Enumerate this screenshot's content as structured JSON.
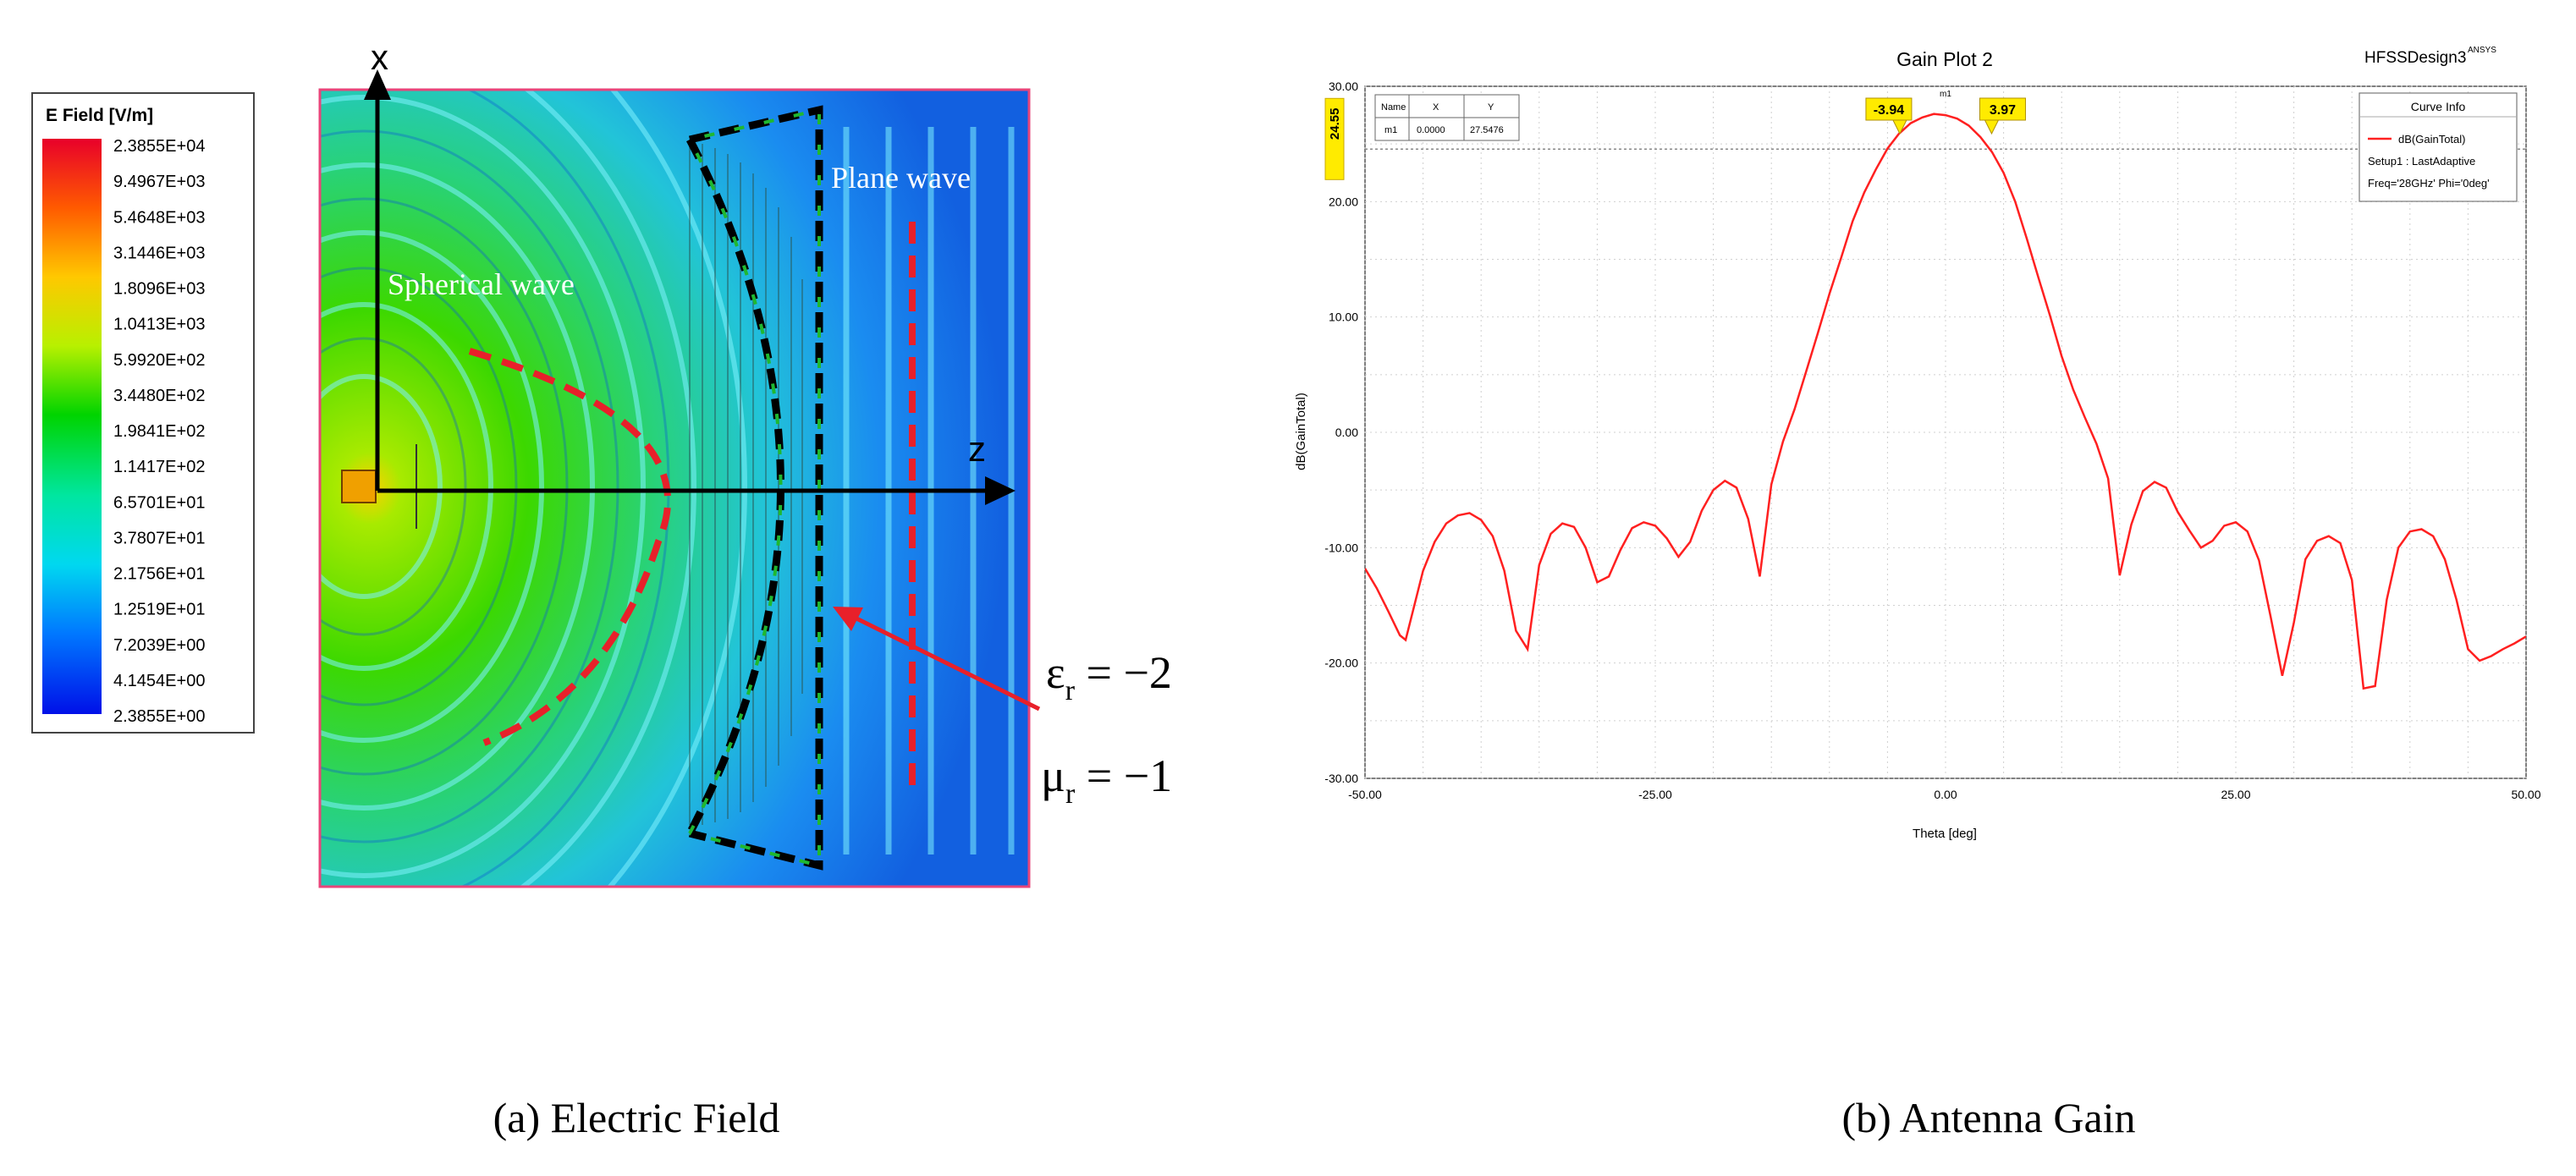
{
  "colors": {
    "curve": "#ff2020",
    "axis": "#000000",
    "marker_fill": "#ffeb00",
    "dashed_red": "#e8202a",
    "dashed_black": "#000000",
    "frame_pink": "#e8457a",
    "grid": "#c8c8c8"
  },
  "panel_a": {
    "legend": {
      "title": "E Field [V/m]",
      "values": [
        "2.3855E+04",
        "9.4967E+03",
        "5.4648E+03",
        "3.1446E+03",
        "1.8096E+03",
        "1.0413E+03",
        "5.9920E+02",
        "3.4480E+02",
        "1.9841E+02",
        "1.1417E+02",
        "6.5701E+01",
        "3.7807E+01",
        "2.1756E+01",
        "1.2519E+01",
        "7.2039E+00",
        "4.1454E+00",
        "2.3855E+00"
      ]
    },
    "axis_x_label": "x",
    "axis_z_label": "z",
    "label_spherical": "Spherical wave",
    "label_plane": "Plane wave",
    "eps_label": "ε",
    "eps_sub": "r",
    "eps_value": " = −2",
    "mu_label": "μ",
    "mu_sub": "r",
    "mu_value": " = −1",
    "caption": "(a)  Electric Field"
  },
  "panel_b": {
    "caption": "(b)  Antenna Gain",
    "design_name": "HFSSDesign3",
    "design_id": "ANSYS",
    "legend": {
      "title": "Curve Info",
      "series": "dB(GainTotal)",
      "setup": "Setup1 : LastAdaptive",
      "params": "Freq='28GHz' Phi='0deg'"
    },
    "marker_table": {
      "headers": [
        "Name",
        "X",
        "Y"
      ],
      "row": [
        "m1",
        "0.0000",
        "27.5476"
      ]
    },
    "marker_m1": "m1",
    "marker_left": "-3.94",
    "marker_right": "3.97",
    "ref_line_value": "24.55"
  },
  "chart_data": {
    "type": "line",
    "title": "Gain Plot 2",
    "xlabel": "Theta [deg]",
    "ylabel": "dB(GainTotal)",
    "xlim": [
      -50,
      50
    ],
    "ylim": [
      -30,
      30
    ],
    "x_ticks": [
      -50,
      -25,
      0,
      25,
      50
    ],
    "x_tick_labels": [
      "-50.00",
      "-25.00",
      "0.00",
      "25.00",
      "50.00"
    ],
    "y_ticks": [
      -30,
      -20,
      -10,
      0,
      10,
      20,
      30
    ],
    "y_tick_labels": [
      "-30.00",
      "-20.00",
      "-10.00",
      "0.00",
      "10.00",
      "20.00",
      "30.00"
    ],
    "grid": true,
    "reference_line_y": 24.55,
    "series": [
      {
        "name": "dB(GainTotal)",
        "x": [
          -50,
          -49,
          -48,
          -47,
          -46.5,
          -45,
          -44,
          -43,
          -42,
          -41,
          -40,
          -39,
          -38,
          -37,
          -36,
          -35,
          -34,
          -33,
          -32,
          -31,
          -30,
          -29,
          -28,
          -27,
          -26,
          -25,
          -24,
          -23,
          -22,
          -21,
          -20,
          -19,
          -18,
          -17,
          -16,
          -15,
          -14,
          -13,
          -12,
          -11,
          -10,
          -9,
          -8,
          -7,
          -6,
          -5,
          -4,
          -3,
          -2,
          -1,
          0,
          1,
          2,
          3,
          4,
          5,
          6,
          7,
          8,
          9,
          10,
          11,
          12,
          13,
          14,
          15,
          16,
          17,
          18,
          19,
          20,
          21,
          22,
          23,
          24,
          25,
          26,
          27,
          28,
          29,
          30,
          31,
          32,
          33,
          34,
          35,
          36,
          37,
          38,
          39,
          40,
          41,
          42,
          43,
          44,
          45,
          46,
          47,
          48,
          49,
          50
        ],
        "y": [
          -11.8,
          -13.5,
          -15.5,
          -17.6,
          -18.0,
          -12.0,
          -9.5,
          -7.9,
          -7.2,
          -7.0,
          -7.6,
          -9.0,
          -12.0,
          -17.2,
          -18.8,
          -11.5,
          -8.8,
          -7.9,
          -8.2,
          -10.0,
          -13.0,
          -12.5,
          -10.2,
          -8.3,
          -7.8,
          -8.1,
          -9.2,
          -10.8,
          -9.5,
          -6.8,
          -5.0,
          -4.2,
          -4.8,
          -7.5,
          -12.5,
          -4.5,
          -0.8,
          2.0,
          5.3,
          8.6,
          12.0,
          15.1,
          18.3,
          20.8,
          22.8,
          24.6,
          25.9,
          26.8,
          27.3,
          27.6,
          27.5,
          27.2,
          26.6,
          25.6,
          24.3,
          22.5,
          20.0,
          16.8,
          13.4,
          10.1,
          6.6,
          3.7,
          1.3,
          -1.0,
          -4.0,
          -12.4,
          -8.0,
          -5.1,
          -4.3,
          -4.8,
          -6.9,
          -8.5,
          -10.0,
          -9.4,
          -8.1,
          -7.8,
          -8.6,
          -11.1,
          -16.0,
          -21.1,
          -16.5,
          -11.0,
          -9.4,
          -9.0,
          -9.6,
          -12.8,
          -22.2,
          -22.0,
          -14.5,
          -10.0,
          -8.6,
          -8.4,
          -9.0,
          -11.0,
          -14.5,
          -18.8,
          -19.8,
          -19.4,
          -18.8,
          -18.3,
          -17.7
        ]
      }
    ]
  }
}
